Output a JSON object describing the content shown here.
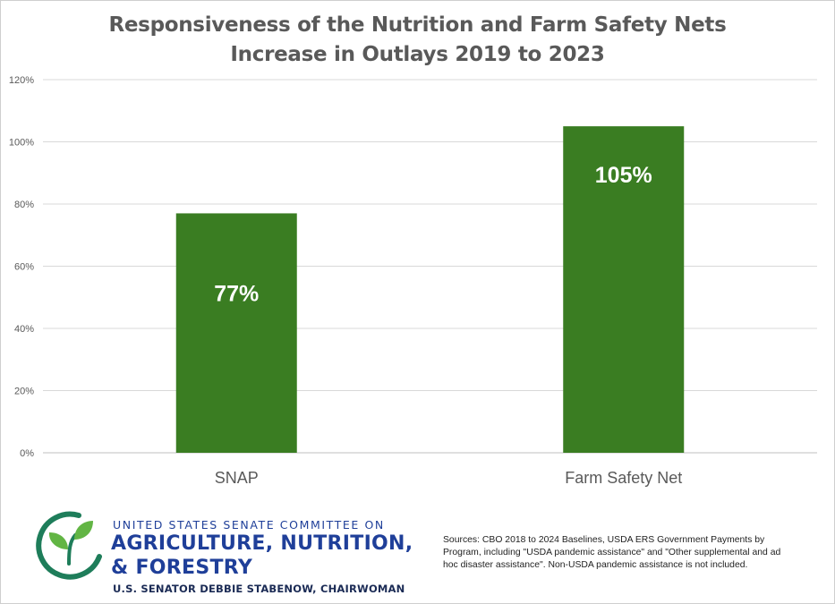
{
  "chart_data": {
    "type": "bar",
    "title": [
      "Responsiveness of the Nutrition and Farm Safety Nets",
      "Increase in Outlays 2019 to 2023"
    ],
    "categories": [
      "SNAP",
      "Farm Safety Net"
    ],
    "values": [
      77,
      105
    ],
    "data_labels": [
      "77%",
      "105%"
    ],
    "ylim": [
      0,
      120
    ],
    "yticks": [
      0,
      20,
      40,
      60,
      80,
      100,
      120
    ],
    "ytick_labels": [
      "0%",
      "20%",
      "40%",
      "60%",
      "80%",
      "100%",
      "120%"
    ],
    "xlabel": "",
    "ylabel": "",
    "grid": true,
    "bar_color": "#3a7d22",
    "label_color": "#ffffff"
  },
  "logo": {
    "line1": "UNITED STATES SENATE COMMITTEE ON",
    "line2": "AGRICULTURE, NUTRITION,",
    "line3": "& FORESTRY",
    "line4": "U.S. SENATOR DEBBIE STABENOW, CHAIRWOMAN",
    "icon": "sprout-circle-icon",
    "brand_color": "#1f3f99",
    "icon_green": "#62b544",
    "icon_teal": "#1e7d5a"
  },
  "sources": "Sources: CBO 2018 to 2024 Baselines, USDA ERS Government Payments by Program, including \"USDA pandemic assistance\" and  \"Other supplemental and ad hoc disaster assistance\".  Non-USDA pandemic assistance is not included."
}
